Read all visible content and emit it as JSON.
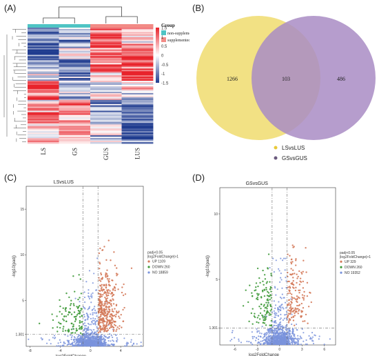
{
  "panels": {
    "a": "(A)",
    "b": "(B)",
    "c": "(C)",
    "d": "(D)"
  },
  "chart_data": [
    {
      "type": "heatmap",
      "columns": [
        "LS",
        "GS",
        "GUS",
        "LUS"
      ],
      "column_groups": [
        "non-supplemented",
        "non-supplemented",
        "supplemented",
        "supplemented"
      ],
      "legend_title": "Group",
      "legend_entries": [
        "non-supplemented",
        "supplemented"
      ],
      "group_colors": {
        "non-supplemented": "#4fc4c4",
        "supplemented": "#f28b86"
      },
      "colorbar_ticks": [
        "1.5",
        "1",
        "0.5",
        "0",
        "-0.5",
        "-1",
        "-1.5"
      ],
      "color_range": [
        -1.5,
        1.5
      ],
      "colors": {
        "high": "#e8232b",
        "mid": "#ffffff",
        "low": "#1f3b8f"
      },
      "blocks": [
        {
          "rows": 15,
          "values": [
            -0.9,
            -0.4,
            1.2,
            0.3
          ]
        },
        {
          "rows": 8,
          "values": [
            -1.1,
            -0.2,
            0.8,
            1.2
          ]
        },
        {
          "rows": 10,
          "values": [
            -0.6,
            -0.8,
            1.0,
            0.9
          ]
        },
        {
          "rows": 6,
          "values": [
            -0.3,
            -1.0,
            0.2,
            1.3
          ]
        },
        {
          "rows": 9,
          "values": [
            1.3,
            -0.6,
            -0.5,
            0.2
          ]
        },
        {
          "rows": 5,
          "values": [
            1.0,
            -0.9,
            0.4,
            -0.4
          ]
        },
        {
          "rows": 4,
          "values": [
            0.3,
            1.3,
            -0.8,
            -0.9
          ]
        },
        {
          "rows": 14,
          "values": [
            0.9,
            0.6,
            -0.7,
            -1.0
          ]
        },
        {
          "rows": 8,
          "values": [
            0.2,
            0.7,
            0.3,
            -1.3
          ]
        },
        {
          "rows": 6,
          "values": [
            0.5,
            0.4,
            -0.3,
            -0.9
          ]
        }
      ]
    },
    {
      "type": "venn",
      "sets": [
        {
          "name": "LSvsLUS",
          "only": 1266,
          "color": "#f0dc6e"
        },
        {
          "name": "GSvsGUS",
          "only": 486,
          "color": "#a98cc4"
        }
      ],
      "intersection": 103
    },
    {
      "type": "scatter",
      "title": "LSvsLUS",
      "xlabel": "log2FoldChange",
      "ylabel": "-log10(padj)",
      "xlim": [
        -8.5,
        7
      ],
      "ylim": [
        0,
        17.5
      ],
      "xticks": [
        -8,
        -4,
        0,
        4
      ],
      "xtick_labels": [
        "-8",
        "-4",
        "0",
        "4"
      ],
      "yticks": [
        1.301,
        5,
        10,
        15
      ],
      "ytick_labels": [
        "1.301",
        "5",
        "10",
        "15"
      ],
      "threshold_x": [
        -1,
        1
      ],
      "threshold_y": 1.301,
      "legend_title": "padj<0.05\n|log2FoldChange|>1",
      "legend": [
        {
          "label": "UP 1109",
          "color": "#d47a5a",
          "count": 1109
        },
        {
          "label": "DOWN 260",
          "color": "#3f9a3a",
          "count": 260
        },
        {
          "label": "NO 18859",
          "color": "#7a93dc",
          "count": 18859
        }
      ]
    },
    {
      "type": "scatter",
      "title": "GSvsGUS",
      "xlabel": "log2FoldChange",
      "ylabel": "-log10(padj)",
      "xlim": [
        -8,
        7.5
      ],
      "ylim": [
        0,
        12
      ],
      "xticks": [
        -6,
        -3,
        0,
        3,
        6
      ],
      "xtick_labels": [
        "-6",
        "-3",
        "0",
        "3",
        "6"
      ],
      "yticks": [
        1.301,
        5,
        10
      ],
      "ytick_labels": [
        "1.301",
        "5",
        "10"
      ],
      "threshold_x": [
        -1,
        1
      ],
      "threshold_y": 1.301,
      "legend_title": "padj<0.05\n|log2FoldChange|>1",
      "legend": [
        {
          "label": "UP 329",
          "color": "#d47a5a",
          "count": 329
        },
        {
          "label": "DOWN 260",
          "color": "#3f9a3a",
          "count": 260
        },
        {
          "label": "NO 19352",
          "color": "#7a93dc",
          "count": 19352
        }
      ]
    }
  ]
}
